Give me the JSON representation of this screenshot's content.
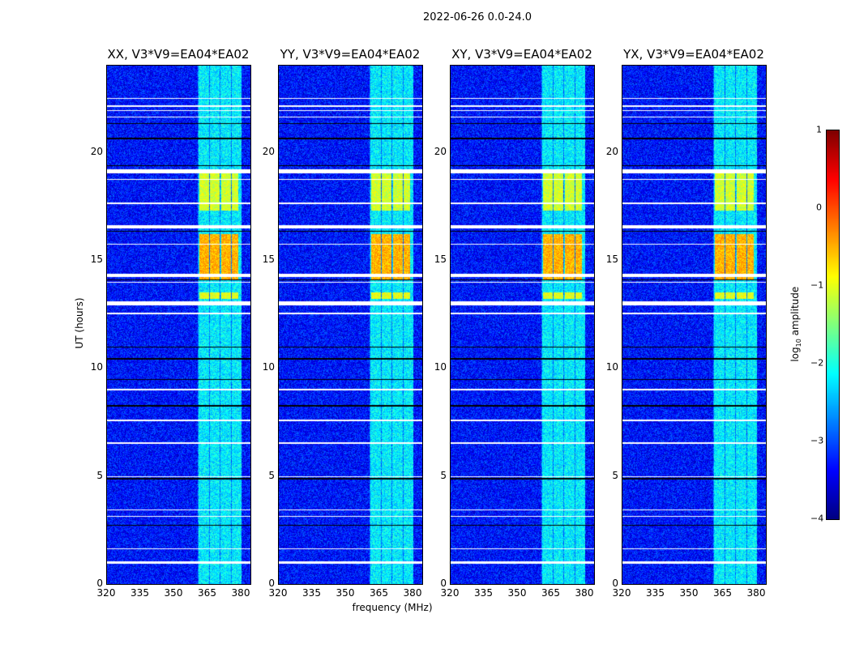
{
  "chart_data": {
    "type": "heatmap",
    "title": "2022-06-26 0.0-24.0",
    "xlabel": "frequency (MHz)",
    "ylabel": "UT (hours)",
    "xlim": [
      320,
      384
    ],
    "ylim": [
      0,
      24
    ],
    "xticks": [
      "320",
      "335",
      "350",
      "365",
      "380"
    ],
    "yticks": [
      "0",
      "5",
      "10",
      "15",
      "20"
    ],
    "panels": [
      {
        "title": "XX, V3*V9=EA04*EA02"
      },
      {
        "title": "YY, V3*V9=EA04*EA02"
      },
      {
        "title": "XY, V3*V9=EA04*EA02"
      },
      {
        "title": "YX, V3*V9=EA04*EA02"
      }
    ],
    "colorbar": {
      "label": "log10 amplitude",
      "label_main": "log",
      "label_sub": "10",
      "label_rest": " amplitude",
      "range": [
        -4,
        1
      ],
      "ticks": [
        "1",
        "0",
        "−1",
        "−2",
        "−3",
        "−4"
      ],
      "colormap": "jet"
    },
    "background_level": -3.3,
    "signal_band_mhz": [
      360.5,
      380
    ],
    "signal_band_level": -2.2,
    "active_periods": [
      {
        "hours": [
          13.2,
          13.5
        ],
        "level": -1.0
      },
      {
        "hours": [
          14.1,
          16.2
        ],
        "level": -0.5
      },
      {
        "hours": [
          17.3,
          19.0
        ],
        "level": -1.1
      }
    ],
    "flagged_white_hours": [
      [
        22.45,
        22.5
      ],
      [
        21.9,
        21.95
      ],
      [
        22.1,
        22.15
      ],
      [
        21.6,
        21.65
      ],
      [
        19.0,
        19.2
      ],
      [
        18.7,
        18.75
      ],
      [
        17.6,
        17.65
      ],
      [
        16.45,
        16.6
      ],
      [
        15.7,
        15.75
      ],
      [
        14.2,
        14.35
      ],
      [
        13.95,
        14.0
      ],
      [
        12.9,
        13.1
      ],
      [
        12.5,
        12.55
      ],
      [
        8.95,
        9.05
      ],
      [
        7.55,
        7.6
      ],
      [
        6.5,
        6.55
      ],
      [
        4.95,
        5.0
      ],
      [
        3.4,
        3.45
      ],
      [
        3.1,
        3.15
      ],
      [
        1.6,
        1.65
      ],
      [
        0.95,
        1.05
      ]
    ],
    "flagged_black_hours": [
      [
        21.3,
        21.35
      ],
      [
        20.6,
        20.65
      ],
      [
        19.35,
        19.4
      ],
      [
        16.3,
        16.35
      ],
      [
        14.05,
        14.1
      ],
      [
        10.95,
        11.0
      ],
      [
        10.4,
        10.45
      ],
      [
        9.45,
        9.5
      ],
      [
        8.2,
        8.3
      ],
      [
        4.85,
        4.9
      ],
      [
        2.7,
        2.75
      ]
    ]
  }
}
